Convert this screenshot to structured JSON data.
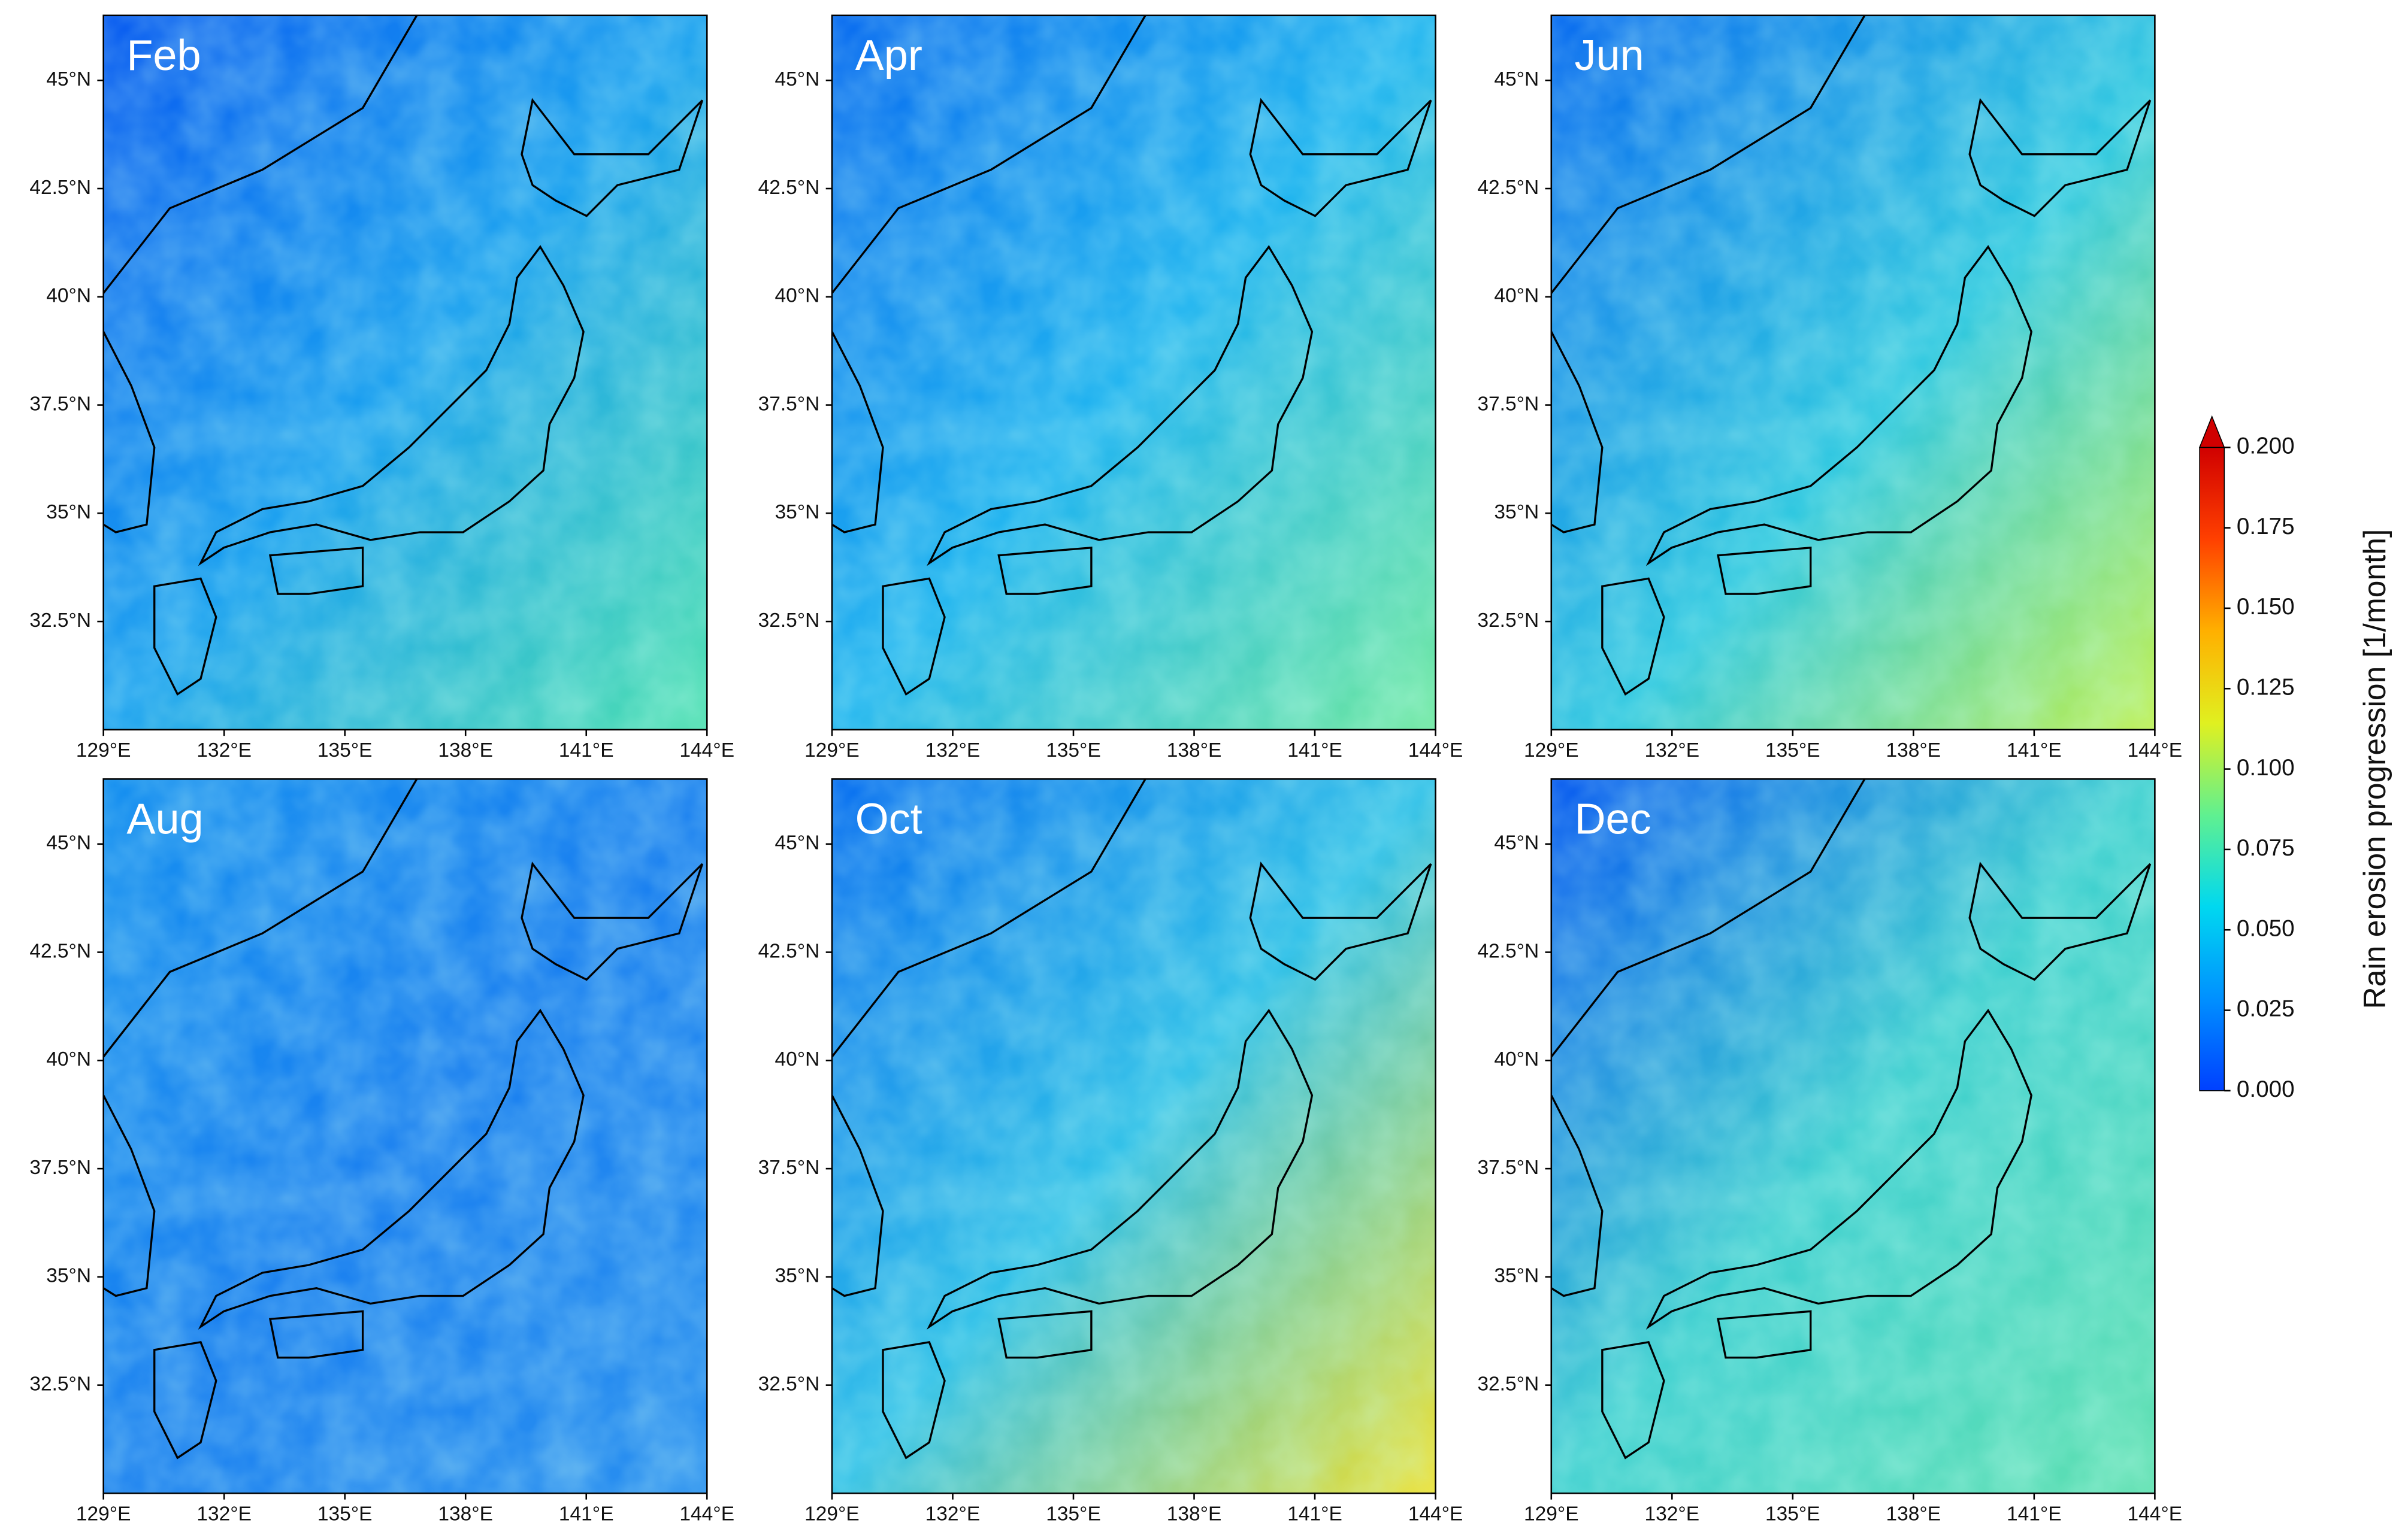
{
  "panels": [
    {
      "title": "Feb"
    },
    {
      "title": "Apr"
    },
    {
      "title": "Jun"
    },
    {
      "title": "Aug"
    },
    {
      "title": "Oct"
    },
    {
      "title": "Dec"
    }
  ],
  "lon_range": [
    129,
    144
  ],
  "lat_range": [
    30,
    46.5
  ],
  "lon_ticks": [
    {
      "value": 129,
      "label": "129°E"
    },
    {
      "value": 132,
      "label": "132°E"
    },
    {
      "value": 135,
      "label": "135°E"
    },
    {
      "value": 138,
      "label": "138°E"
    },
    {
      "value": 141,
      "label": "141°E"
    },
    {
      "value": 144,
      "label": "144°E"
    }
  ],
  "lat_ticks": [
    {
      "value": 32.5,
      "label": "32.5°N"
    },
    {
      "value": 35,
      "label": "35°N"
    },
    {
      "value": 37.5,
      "label": "37.5°N"
    },
    {
      "value": 40,
      "label": "40°N"
    },
    {
      "value": 42.5,
      "label": "42.5°N"
    },
    {
      "value": 45,
      "label": "45°N"
    }
  ],
  "colorbar": {
    "label": "Rain erosion progression [1/month]",
    "range": [
      0,
      0.2
    ],
    "ticks": [
      {
        "value": 0,
        "label": "0.000"
      },
      {
        "value": 0.025,
        "label": "0.025"
      },
      {
        "value": 0.05,
        "label": "0.050"
      },
      {
        "value": 0.075,
        "label": "0.075"
      },
      {
        "value": 0.1,
        "label": "0.100"
      },
      {
        "value": 0.125,
        "label": "0.125"
      },
      {
        "value": 0.15,
        "label": "0.150"
      },
      {
        "value": 0.175,
        "label": "0.175"
      },
      {
        "value": 0.2,
        "label": "0.200"
      }
    ],
    "colors": [
      "#0040ff",
      "#0090ff",
      "#00d8f0",
      "#60f090",
      "#e0f020",
      "#ffb000",
      "#ff4000",
      "#d00000"
    ]
  }
}
